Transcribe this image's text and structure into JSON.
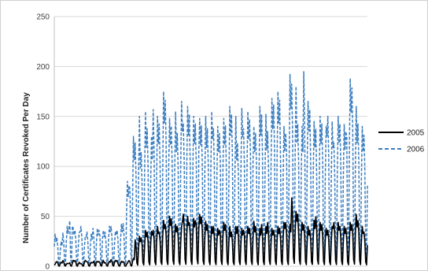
{
  "chart_data": {
    "type": "line",
    "title": "",
    "xlabel": "",
    "ylabel": "Number of Certificates Revoked Per Day",
    "ylim": [
      0,
      250
    ],
    "yticks": [
      0,
      50,
      100,
      150,
      200,
      250
    ],
    "ytick_labels": [
      "0",
      "50",
      "100",
      "150",
      "200",
      "250"
    ],
    "grid": true,
    "legend_position": "right",
    "days": 365,
    "series": [
      {
        "name": "2005",
        "color": "#000000",
        "dash": "solid",
        "peaks": [
          2,
          5,
          4,
          6,
          3,
          5,
          6,
          4,
          3,
          6,
          5,
          4,
          7,
          5,
          6,
          4,
          5,
          7,
          6,
          4,
          5,
          3,
          6,
          8,
          28,
          30,
          32,
          36,
          35,
          38,
          40,
          36,
          46,
          44,
          50,
          48,
          42,
          40,
          55,
          50,
          46,
          48,
          60,
          52,
          45,
          44,
          40,
          42,
          38,
          46,
          44,
          40,
          36,
          40,
          42,
          38,
          44,
          40,
          45,
          42,
          38,
          44,
          40,
          46,
          38,
          42,
          40,
          44,
          46,
          42,
          72,
          55,
          48,
          44,
          40,
          38,
          46,
          52,
          44,
          42,
          38,
          40,
          46,
          44,
          42,
          40,
          38,
          44,
          52,
          48,
          40,
          36,
          34
        ]
      },
      {
        "name": "2006",
        "color": "#3a7dc0",
        "dash": "dashed",
        "peaks": [
          32,
          30,
          25,
          35,
          40,
          65,
          38,
          34,
          42,
          30,
          36,
          33,
          40,
          38,
          44,
          36,
          40,
          42,
          35,
          38,
          42,
          45,
          85,
          110,
          130,
          150,
          120,
          155,
          145,
          130,
          165,
          150,
          145,
          175,
          160,
          148,
          155,
          140,
          165,
          150,
          160,
          145,
          150,
          185,
          148,
          150,
          145,
          155,
          145,
          140,
          150,
          148,
          138,
          160,
          150,
          130,
          158,
          145,
          155,
          165,
          140,
          148,
          160,
          152,
          142,
          168,
          170,
          175,
          150,
          140,
          165,
          192,
          180,
          150,
          140,
          205,
          165,
          150,
          145,
          130,
          150,
          140,
          158,
          145,
          130,
          150,
          150,
          142,
          185,
          188,
          160,
          150,
          140,
          138,
          130
        ]
      }
    ]
  }
}
